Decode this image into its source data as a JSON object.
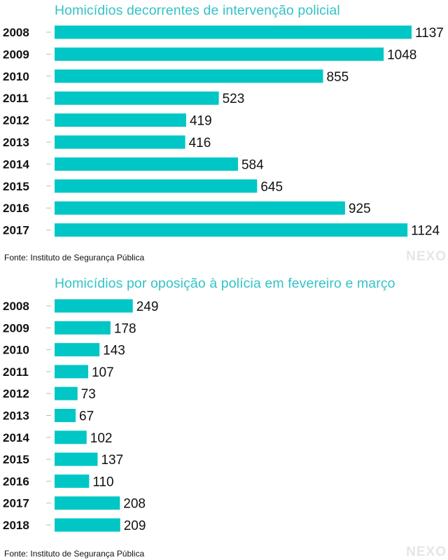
{
  "chart_data": [
    {
      "type": "bar",
      "orientation": "horizontal",
      "title": "Homicídios decorrentes de intervenção policial",
      "categories": [
        "2008",
        "2009",
        "2010",
        "2011",
        "2012",
        "2013",
        "2014",
        "2015",
        "2016",
        "2017"
      ],
      "values": [
        1137,
        1048,
        855,
        523,
        419,
        416,
        584,
        645,
        925,
        1124
      ],
      "bar_color": "#00c6c6",
      "xlim": [
        0,
        1137
      ],
      "grid": false,
      "source": "Fonte: Instituto de Segurança Pública",
      "logo": "NEXO"
    },
    {
      "type": "bar",
      "orientation": "horizontal",
      "title": "Homicídios por oposição à polícia em fevereiro e março",
      "categories": [
        "2008",
        "2009",
        "2010",
        "2011",
        "2012",
        "2013",
        "2014",
        "2015",
        "2016",
        "2017",
        "2018"
      ],
      "values": [
        249,
        178,
        143,
        107,
        73,
        67,
        102,
        137,
        110,
        208,
        209
      ],
      "bar_color": "#00c6c6",
      "xlim": [
        0,
        1137
      ],
      "grid": false,
      "source": "Fonte: Instituto de Segurança Pública",
      "logo": "NEXO"
    }
  ]
}
